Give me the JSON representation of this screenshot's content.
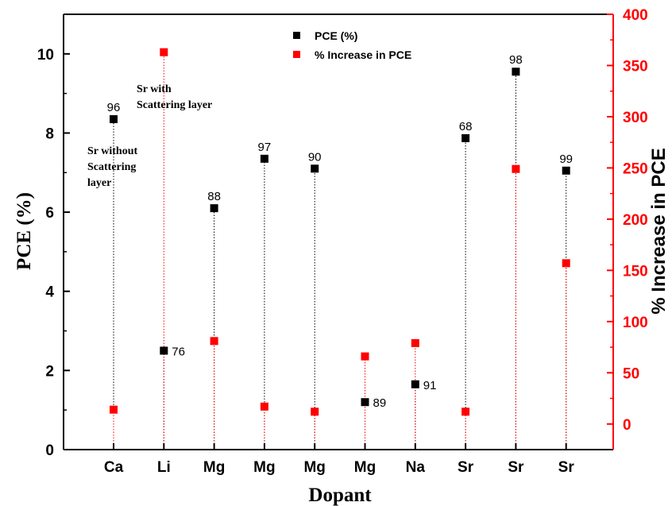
{
  "chart_data": {
    "type": "scatter",
    "title": "",
    "xlabel": "Dopant",
    "ylabel": "PCE (%)",
    "y2label": "% Increase in PCE",
    "categories": [
      "Ca",
      "Li",
      "Mg",
      "Mg",
      "Mg",
      "Mg",
      "Na",
      "Sr",
      "Sr",
      "Sr"
    ],
    "ylim": [
      0,
      11
    ],
    "y2lim": [
      -25,
      400
    ],
    "yticks": [
      0,
      2,
      4,
      6,
      8,
      10
    ],
    "y2ticks": [
      0,
      50,
      100,
      150,
      200,
      250,
      300,
      350,
      400
    ],
    "series": [
      {
        "name": "PCE (%)",
        "axis": "left",
        "color": "#000000",
        "values": [
          8.35,
          2.5,
          6.1,
          7.35,
          7.1,
          1.2,
          1.65,
          7.87,
          9.55,
          7.05
        ],
        "labels": [
          "96",
          "76",
          "88",
          "97",
          "90",
          "89",
          "91",
          "68",
          "98",
          "99"
        ]
      },
      {
        "name": "% Increase in PCE",
        "axis": "right",
        "color": "#ff0000",
        "values": [
          14,
          363,
          81,
          17,
          12,
          66,
          79,
          12,
          249,
          157
        ]
      }
    ],
    "annotations": [
      {
        "lines": [
          "Sr without",
          "Scattering",
          "layer"
        ]
      },
      {
        "lines": [
          "Sr with",
          "Scattering layer"
        ]
      }
    ],
    "legend_position": "top-center",
    "colors": {
      "left_axis": "#000000",
      "right_axis": "#ff0000"
    }
  }
}
